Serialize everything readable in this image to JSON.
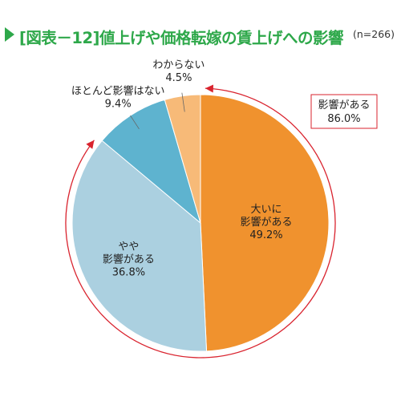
{
  "title": "[図表－12]値上げや価格転嫁の賃上げへの影響",
  "sample_size": "(n=266)",
  "chart_data": {
    "type": "pie",
    "title": "[図表－12]値上げや価格転嫁の賃上げへの影響",
    "start": "12 o'clock",
    "direction": "clockwise",
    "slices": [
      {
        "label_lines": [
          "大いに",
          "影響がある"
        ],
        "value_text": "49.2%",
        "value": 49.2,
        "color": "#f0922e"
      },
      {
        "label_lines": [
          "やや",
          "影響がある"
        ],
        "value_text": "36.8%",
        "value": 36.8,
        "color": "#abd0e0"
      },
      {
        "label_lines": [
          "ほとんど影響はない"
        ],
        "value_text": "9.4%",
        "value": 9.4,
        "color": "#5eb3cf"
      },
      {
        "label_lines": [
          "わからない"
        ],
        "value_text": "4.5%",
        "value": 4.5,
        "color": "#f7ba78"
      }
    ],
    "annotation": {
      "label": "影響がある",
      "value_text": "86.0%",
      "value": 86.0,
      "color": "#d9232e"
    }
  }
}
